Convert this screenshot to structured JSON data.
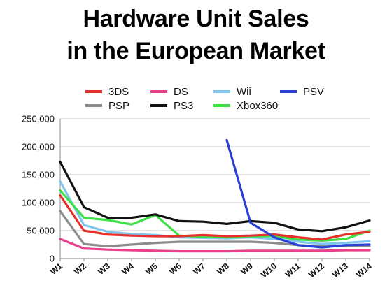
{
  "chart_data": {
    "type": "line",
    "title_lines": [
      "Hardware Unit Sales",
      "in the European Market"
    ],
    "xlabel": "",
    "ylabel": "",
    "categories": [
      "W1",
      "W2",
      "W3",
      "W4",
      "W5",
      "W6",
      "W7",
      "W8",
      "W9",
      "W10",
      "W11",
      "W12",
      "W13",
      "W14"
    ],
    "ylim": [
      0,
      250000
    ],
    "yticks": [
      0,
      50000,
      100000,
      150000,
      200000,
      250000
    ],
    "ytick_labels": [
      "0",
      "50,000",
      "100,000",
      "150,000",
      "200,000",
      "250,000"
    ],
    "grid": "horizontal",
    "legend_position": "top",
    "series": [
      {
        "name": "3DS",
        "color": "#e8302a",
        "values": [
          113000,
          50000,
          43000,
          41000,
          40000,
          40000,
          42000,
          40000,
          41000,
          43000,
          38000,
          34000,
          43000,
          48000
        ]
      },
      {
        "name": "DS",
        "color": "#e8418a",
        "values": [
          35000,
          18000,
          16000,
          15000,
          14000,
          13000,
          13000,
          13000,
          14000,
          14000,
          14000,
          14000,
          15000,
          15000
        ]
      },
      {
        "name": "Wii",
        "color": "#7fc6ee",
        "values": [
          138000,
          60000,
          48000,
          44000,
          42000,
          38000,
          37000,
          36000,
          38000,
          35000,
          30000,
          26000,
          28000,
          31000
        ]
      },
      {
        "name": "PSV",
        "color": "#2a3ed8",
        "values": [
          null,
          null,
          null,
          null,
          null,
          null,
          null,
          212000,
          64000,
          38000,
          24000,
          20000,
          24000,
          25000
        ]
      },
      {
        "name": "PSP",
        "color": "#8c8c8c",
        "values": [
          85000,
          26000,
          22000,
          25000,
          28000,
          30000,
          30000,
          30000,
          30000,
          28000,
          24000,
          22000,
          22000,
          22000
        ]
      },
      {
        "name": "PS3",
        "color": "#111111",
        "values": [
          173000,
          92000,
          73000,
          73000,
          79000,
          67000,
          66000,
          62000,
          67000,
          64000,
          52000,
          49000,
          56000,
          68000
        ]
      },
      {
        "name": "Xbox360",
        "color": "#3ee048",
        "values": [
          122000,
          73000,
          69000,
          61000,
          78000,
          41000,
          39000,
          38000,
          40000,
          40000,
          34000,
          32000,
          35000,
          50000
        ]
      }
    ],
    "legend_rows": [
      [
        "3DS",
        "DS",
        "Wii",
        "PSV"
      ],
      [
        "PSP",
        "PS3",
        "Xbox360"
      ]
    ]
  }
}
